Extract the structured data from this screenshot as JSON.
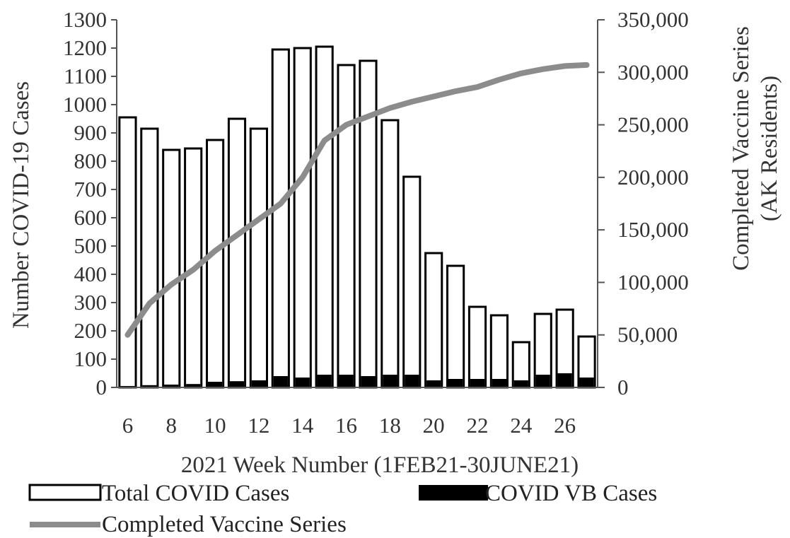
{
  "chart_data": {
    "type": "bar",
    "x": [
      6,
      7,
      8,
      9,
      10,
      11,
      12,
      13,
      14,
      15,
      16,
      17,
      18,
      19,
      20,
      21,
      22,
      23,
      24,
      25,
      26,
      27
    ],
    "xticks": [
      "6",
      "8",
      "10",
      "12",
      "14",
      "16",
      "18",
      "20",
      "22",
      "24",
      "26"
    ],
    "xlabel": "2021 Week Number (1FEB21-30JUNE21)",
    "ylabel": "Number COVID-19 Cases",
    "ylabel_right": [
      "Completed Vaccine Series",
      "(AK Residents)"
    ],
    "ylim": [
      0,
      1300
    ],
    "ylim_right": [
      0,
      350000
    ],
    "yticks": [
      "0",
      "100",
      "200",
      "300",
      "400",
      "500",
      "600",
      "700",
      "800",
      "900",
      "1000",
      "1100",
      "1200",
      "1300"
    ],
    "yticks_right": [
      "0",
      "50,000",
      "100,000",
      "150,000",
      "200,000",
      "250,000",
      "300,000",
      "350,000"
    ],
    "series": [
      {
        "name": "Total COVID Cases",
        "kind": "bar",
        "color": "#ffffff",
        "values": [
          955,
          915,
          840,
          845,
          875,
          950,
          915,
          1195,
          1200,
          1205,
          1140,
          1155,
          945,
          745,
          475,
          430,
          285,
          255,
          160,
          260,
          275,
          180
        ]
      },
      {
        "name": "COVID VB Cases",
        "kind": "bar",
        "color": "#000000",
        "values": [
          5,
          8,
          10,
          12,
          20,
          22,
          25,
          40,
          35,
          45,
          45,
          40,
          45,
          45,
          25,
          30,
          30,
          30,
          25,
          45,
          50,
          35
        ]
      },
      {
        "name": "Completed Vaccine Series",
        "kind": "line",
        "axis": "right",
        "color": "#8c8c8c",
        "values": [
          50000,
          80000,
          98000,
          112000,
          130000,
          145000,
          160000,
          175000,
          200000,
          235000,
          250000,
          258000,
          266000,
          272000,
          277000,
          282000,
          286000,
          293000,
          299000,
          303000,
          306000,
          307000
        ]
      }
    ],
    "legend": "bottom",
    "grid": false
  }
}
